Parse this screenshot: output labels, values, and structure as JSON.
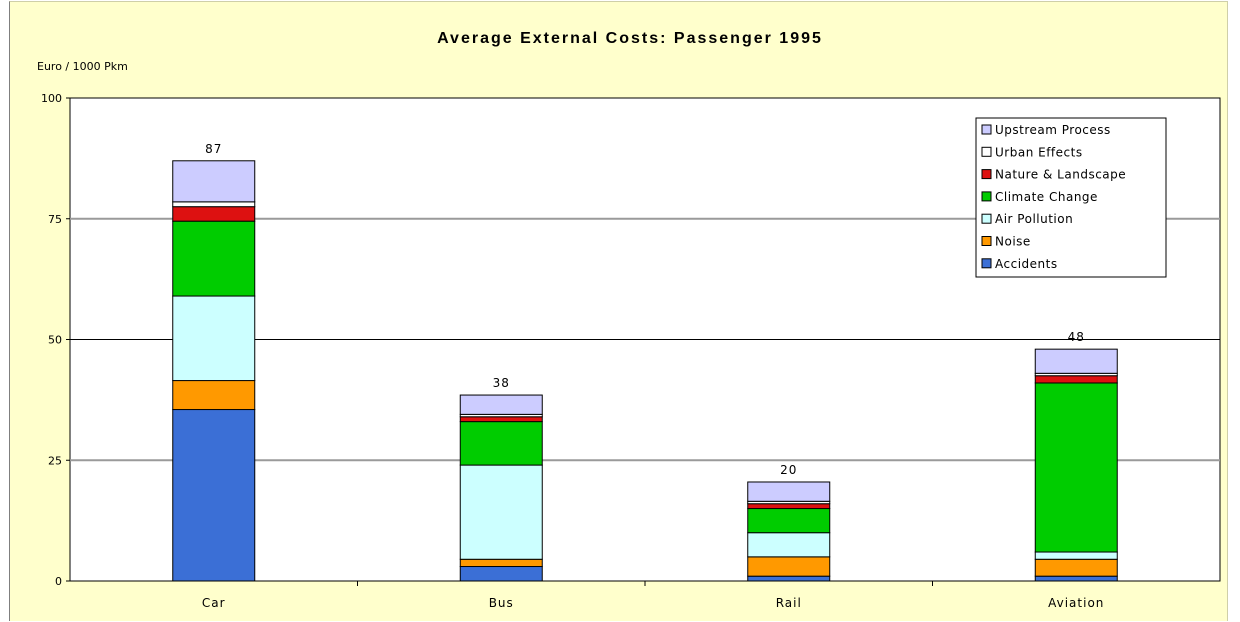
{
  "chart_data": {
    "type": "bar",
    "stacked": true,
    "title": "Average External Costs: Passenger  1995",
    "ylabel": "Euro / 1000 Pkm",
    "xlabel": "",
    "ylim": [
      0,
      100
    ],
    "yticks": [
      "0",
      "25",
      "50",
      "75",
      "100"
    ],
    "grid": true,
    "legend_position": "top-right",
    "categories": [
      "Car",
      "Bus",
      "Rail",
      "Aviation"
    ],
    "totals": [
      "87",
      "38",
      "20",
      "48"
    ],
    "series": [
      {
        "name": "Accidents",
        "color": "#3b6fd6",
        "values": [
          35.5,
          3,
          1,
          1
        ]
      },
      {
        "name": "Noise",
        "color": "#ff9900",
        "values": [
          6,
          1.5,
          4,
          3.5
        ]
      },
      {
        "name": "Air Pollution",
        "color": "#ccffff",
        "values": [
          17.5,
          19.5,
          5,
          1.5
        ]
      },
      {
        "name": "Climate Change",
        "color": "#00cc00",
        "values": [
          15.5,
          9,
          5,
          35
        ]
      },
      {
        "name": "Nature & Landscape",
        "color": "#dd1111",
        "values": [
          3,
          1,
          1,
          1.5
        ]
      },
      {
        "name": "Urban Effects",
        "color": "#ffffff",
        "values": [
          1,
          0.5,
          0.5,
          0.5
        ]
      },
      {
        "name": "Upstream Process",
        "color": "#ccccff",
        "values": [
          8.5,
          4,
          4,
          5
        ]
      }
    ]
  }
}
